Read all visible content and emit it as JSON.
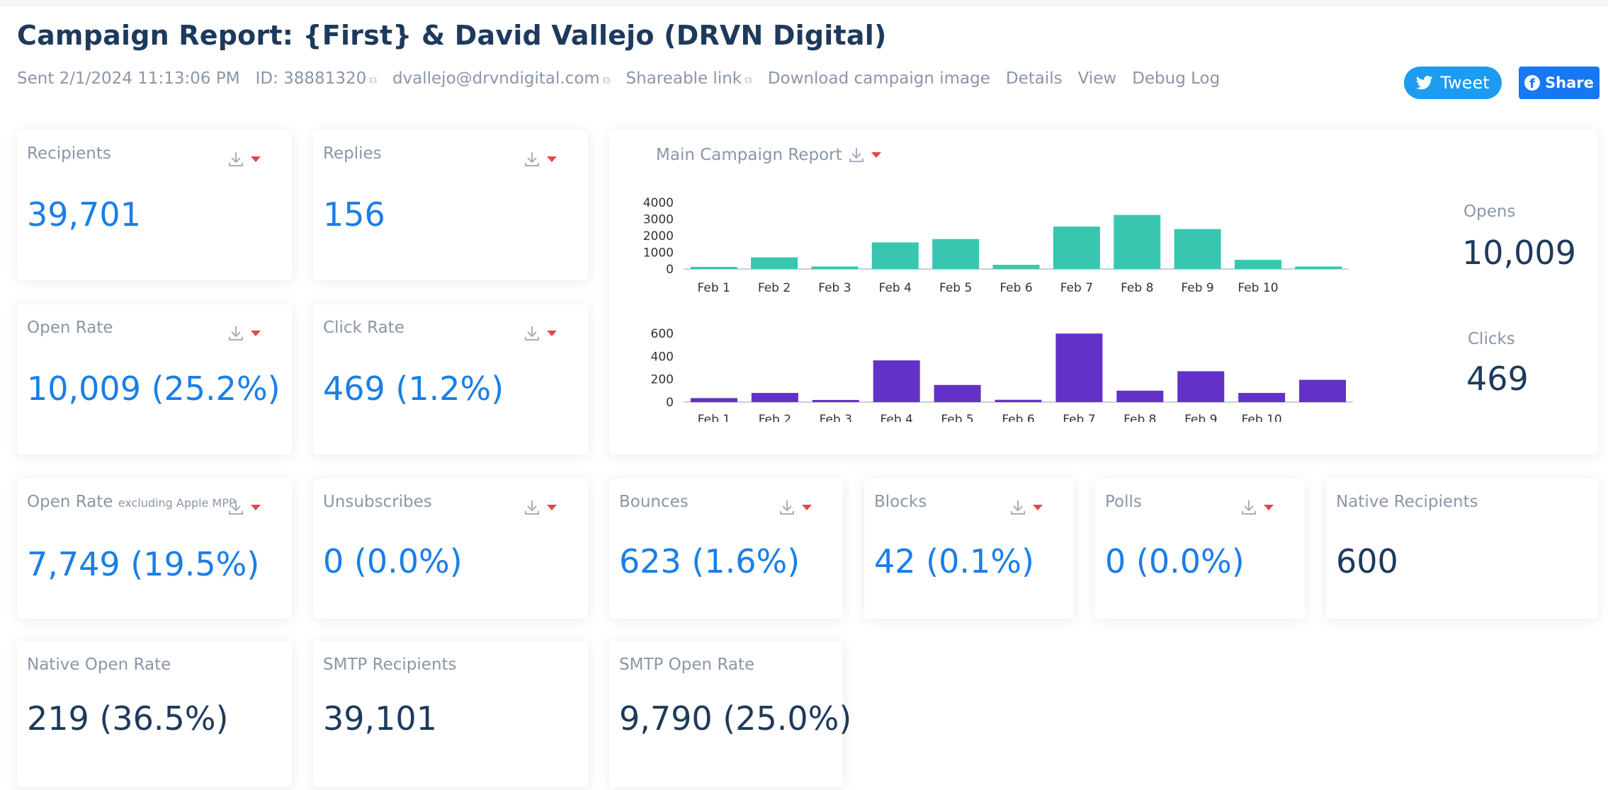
{
  "header": {
    "title": "Campaign Report: {First} & David Vallejo (DRVN Digital)",
    "sent": "Sent 2/1/2024 11:13:06 PM",
    "id": "ID: 38881320",
    "email": "dvallejo@drvndigital.com",
    "shareable_link": "Shareable link",
    "download_image": "Download campaign image",
    "details": "Details",
    "view": "View",
    "debug_log": "Debug Log",
    "tweet": "Tweet",
    "share": "Share"
  },
  "colors": {
    "accent": "#1a7ee8",
    "opens_bar": "#38c6b0",
    "clicks_bar": "#6231c8",
    "caret": "#e0474c",
    "tweet": "#1d9bf0",
    "facebook": "#1877f2"
  },
  "icons": {
    "download": "download-icon",
    "caret": "caret-down-icon",
    "copy": "copy-icon",
    "twitter": "twitter-icon",
    "facebook": "facebook-icon"
  },
  "cards": {
    "recipients": {
      "label": "Recipients",
      "value": "39,701"
    },
    "replies": {
      "label": "Replies",
      "value": "156"
    },
    "open_rate": {
      "label": "Open Rate",
      "value": "10,009 (25.2%)"
    },
    "click_rate": {
      "label": "Click Rate",
      "value": "469 (1.2%)"
    },
    "open_rate_mpp": {
      "label": "Open Rate",
      "sublabel": "excluding Apple MPP",
      "value": "7,749 (19.5%)"
    },
    "unsubscribes": {
      "label": "Unsubscribes",
      "value": "0 (0.0%)"
    },
    "bounces": {
      "label": "Bounces",
      "value": "623 (1.6%)"
    },
    "blocks": {
      "label": "Blocks",
      "value": "42 (0.1%)"
    },
    "polls": {
      "label": "Polls",
      "value": "0 (0.0%)"
    },
    "native_recipients": {
      "label": "Native Recipients",
      "value": "600"
    },
    "native_open_rate": {
      "label": "Native Open Rate",
      "value": "219 (36.5%)"
    },
    "smtp_recipients": {
      "label": "SMTP Recipients",
      "value": "39,101"
    },
    "smtp_open_rate": {
      "label": "SMTP Open Rate",
      "value": "9,790 (25.0%)"
    }
  },
  "main_report": {
    "title": "Main Campaign Report",
    "opens_label": "Opens",
    "opens_value": "10,009",
    "clicks_label": "Clicks",
    "clicks_value": "469"
  },
  "chart_data": [
    {
      "type": "bar",
      "categories": [
        "Feb 1",
        "Feb 2",
        "Feb 3",
        "Feb 4",
        "Feb 5",
        "Feb 6",
        "Feb 7",
        "Feb 8",
        "Feb 9",
        "Feb 10",
        ""
      ],
      "values": [
        100,
        700,
        150,
        1600,
        1800,
        250,
        2550,
        3250,
        2400,
        550,
        150
      ],
      "yticks": [
        0,
        1000,
        2000,
        3000,
        4000
      ],
      "ylim": [
        0,
        4000
      ],
      "grid": false
    },
    {
      "type": "bar",
      "categories": [
        "Feb 1",
        "Feb 2",
        "Feb 3",
        "Feb 4",
        "Feb 5",
        "Feb 6",
        "Feb 7",
        "Feb 8",
        "Feb 9",
        "Feb 10",
        ""
      ],
      "values": [
        35,
        80,
        10,
        365,
        150,
        20,
        600,
        100,
        270,
        80,
        195
      ],
      "yticks": [
        0,
        200,
        400,
        600
      ],
      "ylim": [
        0,
        620
      ],
      "grid": false
    }
  ]
}
